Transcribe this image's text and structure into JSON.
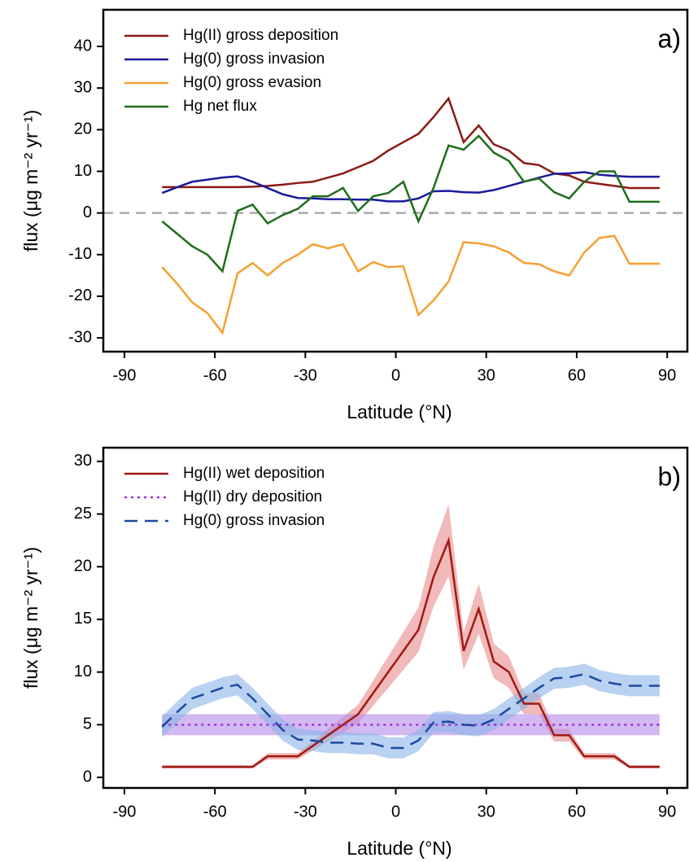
{
  "chart_data": [
    {
      "type": "line",
      "panel_label": "a)",
      "xlabel": "Latitude (°N)",
      "ylabel": "flux (μg m⁻² yr⁻¹)",
      "x": [
        -77.5,
        -72.5,
        -67.5,
        -62.5,
        -57.5,
        -52.5,
        -47.5,
        -42.5,
        -37.5,
        -32.5,
        -27.5,
        -22.5,
        -17.5,
        -12.5,
        -7.5,
        -2.5,
        2.5,
        7.5,
        12.5,
        17.5,
        22.5,
        27.5,
        32.5,
        37.5,
        42.5,
        47.5,
        52.5,
        57.5,
        62.5,
        67.5,
        72.5,
        77.5,
        82.5,
        87.5
      ],
      "xlim": [
        -97,
        96.7
      ],
      "xticks": [
        -90,
        -60,
        -30,
        0,
        30,
        60,
        90
      ],
      "ylim": [
        -33.3,
        48.8
      ],
      "yticks": [
        -30,
        -20,
        -10,
        0,
        10,
        20,
        30,
        40
      ],
      "reference_line": 0,
      "legend": "upper left",
      "series": [
        {
          "name": "Hg(II) gross deposition",
          "color": "#8b1a12",
          "dash": "solid",
          "values": [
            6.2,
            6.2,
            6.2,
            6.2,
            6.2,
            6.2,
            6.3,
            6.5,
            6.8,
            7.2,
            7.5,
            8.5,
            9.5,
            11,
            12.5,
            15,
            17,
            19,
            23,
            27.5,
            17,
            21,
            16.5,
            15,
            12,
            11.5,
            9.5,
            9,
            7.5,
            7,
            6.5,
            6,
            6,
            6
          ]
        },
        {
          "name": "Hg(0) gross invasion",
          "color": "#1a1a9c",
          "dash": "solid",
          "values": [
            4.8,
            6.2,
            7.5,
            8,
            8.5,
            8.8,
            7.5,
            6,
            4.5,
            3.6,
            3.5,
            3.3,
            3.3,
            3.2,
            3.2,
            2.8,
            2.8,
            3.5,
            5.2,
            5.3,
            5,
            4.9,
            5.5,
            6.5,
            7.5,
            8.5,
            9.4,
            9.5,
            9.8,
            9.2,
            8.9,
            8.7,
            8.7,
            8.7
          ]
        },
        {
          "name": "Hg(0) gross evasion",
          "color": "#f5a030",
          "dash": "solid",
          "values": [
            -13,
            -17,
            -21.5,
            -24,
            -28.8,
            -14.5,
            -12,
            -15,
            -12,
            -10,
            -7.5,
            -8.5,
            -7.5,
            -14,
            -11.8,
            -13,
            -12.8,
            -24.5,
            -21,
            -16.5,
            -7,
            -7.3,
            -8,
            -9.5,
            -12,
            -12.3,
            -14,
            -15,
            -9.5,
            -6,
            -5.5,
            -12.2,
            -12.2,
            -12.2
          ]
        },
        {
          "name": "Hg net flux",
          "color": "#1f6e1a",
          "dash": "solid",
          "values": [
            -2,
            -5,
            -8,
            -10,
            -14,
            0.5,
            2,
            -2.5,
            -0.5,
            1,
            4,
            4,
            6,
            0.5,
            4,
            4.8,
            7.5,
            -2,
            6,
            16.2,
            15.2,
            18.5,
            14.5,
            12.5,
            7.5,
            8.3,
            5,
            3.5,
            7.5,
            10,
            10,
            2.7,
            2.7,
            2.7
          ]
        }
      ]
    },
    {
      "type": "line",
      "panel_label": "b)",
      "xlabel": "Latitude (°N)",
      "ylabel": "flux (μg m⁻² yr⁻¹)",
      "x": [
        -77.5,
        -72.5,
        -67.5,
        -62.5,
        -57.5,
        -52.5,
        -47.5,
        -42.5,
        -37.5,
        -32.5,
        -27.5,
        -22.5,
        -17.5,
        -12.5,
        -7.5,
        -2.5,
        2.5,
        7.5,
        12.5,
        17.5,
        22.5,
        27.5,
        32.5,
        37.5,
        42.5,
        47.5,
        52.5,
        57.5,
        62.5,
        67.5,
        72.5,
        77.5,
        82.5,
        87.5
      ],
      "xlim": [
        -97,
        96.7
      ],
      "xticks": [
        -90,
        -60,
        -30,
        0,
        30,
        60,
        90
      ],
      "ylim": [
        -1,
        31.3
      ],
      "yticks": [
        0,
        5,
        10,
        15,
        20,
        25,
        30
      ],
      "legend": "upper left",
      "series": [
        {
          "name": "Hg(II) wet deposition",
          "color": "#a01a12",
          "band_color": "#e88a8a",
          "dash": "solid",
          "values": [
            1,
            1,
            1,
            1,
            1,
            1,
            1,
            2,
            2,
            2,
            3,
            4,
            5,
            6,
            8,
            10,
            12,
            14,
            19,
            22.5,
            12,
            16,
            11,
            10,
            7,
            7,
            4,
            4,
            2,
            2,
            2,
            1,
            1,
            1
          ],
          "lower": [
            0.85,
            0.85,
            0.85,
            0.85,
            0.85,
            0.85,
            0.85,
            1.7,
            1.7,
            1.7,
            2.55,
            3.4,
            4.25,
            5.1,
            6.8,
            8.5,
            10.2,
            11.9,
            16.2,
            19.1,
            10.2,
            13.6,
            9.4,
            8.5,
            6,
            6,
            3.4,
            3.4,
            1.7,
            1.7,
            1.7,
            0.85,
            0.85,
            0.85
          ],
          "upper": [
            1.15,
            1.15,
            1.15,
            1.15,
            1.15,
            1.15,
            1.15,
            2.3,
            2.3,
            2.3,
            3.45,
            4.6,
            5.75,
            6.9,
            9.2,
            11.5,
            13.8,
            16.1,
            21.9,
            25.9,
            13.8,
            18.4,
            12.7,
            11.5,
            8,
            8,
            4.6,
            4.6,
            2.3,
            2.3,
            2.3,
            1.15,
            1.15,
            1.15
          ]
        },
        {
          "name": "Hg(II) dry deposition",
          "color": "#9b30e0",
          "band_color": "#b58ae8",
          "dash": "dotted",
          "values": [
            5,
            5,
            5,
            5,
            5,
            5,
            5,
            5,
            5,
            5,
            5,
            5,
            5,
            5,
            5,
            5,
            5,
            5,
            5,
            5,
            5,
            5,
            5,
            5,
            5,
            5,
            5,
            5,
            5,
            5,
            5,
            5,
            5,
            5
          ],
          "lower": [
            4,
            4,
            4,
            4,
            4,
            4,
            4,
            4,
            4,
            4,
            4,
            4,
            4,
            4,
            4,
            4,
            4,
            4,
            4,
            4,
            4,
            4,
            4,
            4,
            4,
            4,
            4,
            4,
            4,
            4,
            4,
            4,
            4,
            4
          ],
          "upper": [
            6,
            6,
            6,
            6,
            6,
            6,
            6,
            6,
            6,
            6,
            6,
            6,
            6,
            6,
            6,
            6,
            6,
            6,
            6,
            6,
            6,
            6,
            6,
            6,
            6,
            6,
            6,
            6,
            6,
            6,
            6,
            6,
            6,
            6
          ]
        },
        {
          "name": "Hg(0) gross invasion",
          "color": "#1a4aa0",
          "band_color": "#8ab4e8",
          "dash": "dashed",
          "values": [
            4.8,
            6.2,
            7.5,
            8,
            8.5,
            8.8,
            7.5,
            6,
            4.5,
            3.6,
            3.5,
            3.3,
            3.3,
            3.2,
            3.2,
            2.8,
            2.8,
            3.5,
            5.2,
            5.3,
            5,
            4.9,
            5.5,
            6.5,
            7.5,
            8.5,
            9.4,
            9.5,
            9.8,
            9.2,
            8.9,
            8.7,
            8.7,
            8.7
          ],
          "lower": [
            3.8,
            5.2,
            6.5,
            7,
            7.5,
            7.8,
            6.5,
            5,
            3.5,
            2.6,
            2.5,
            2.3,
            2.3,
            2.2,
            2.2,
            1.8,
            1.8,
            2.5,
            4.2,
            4.3,
            4,
            3.9,
            4.5,
            5.5,
            6.5,
            7.5,
            8.4,
            8.5,
            8.8,
            8.2,
            7.9,
            7.7,
            7.7,
            7.7
          ],
          "upper": [
            5.8,
            7.2,
            8.5,
            9,
            9.5,
            9.8,
            8.5,
            7,
            5.5,
            4.6,
            4.5,
            4.3,
            4.3,
            4.2,
            4.2,
            3.8,
            3.8,
            4.5,
            6.2,
            6.3,
            6,
            5.9,
            6.5,
            7.5,
            8.5,
            9.5,
            10.4,
            10.5,
            10.8,
            10.2,
            9.9,
            9.7,
            9.7,
            9.7
          ]
        }
      ]
    }
  ]
}
